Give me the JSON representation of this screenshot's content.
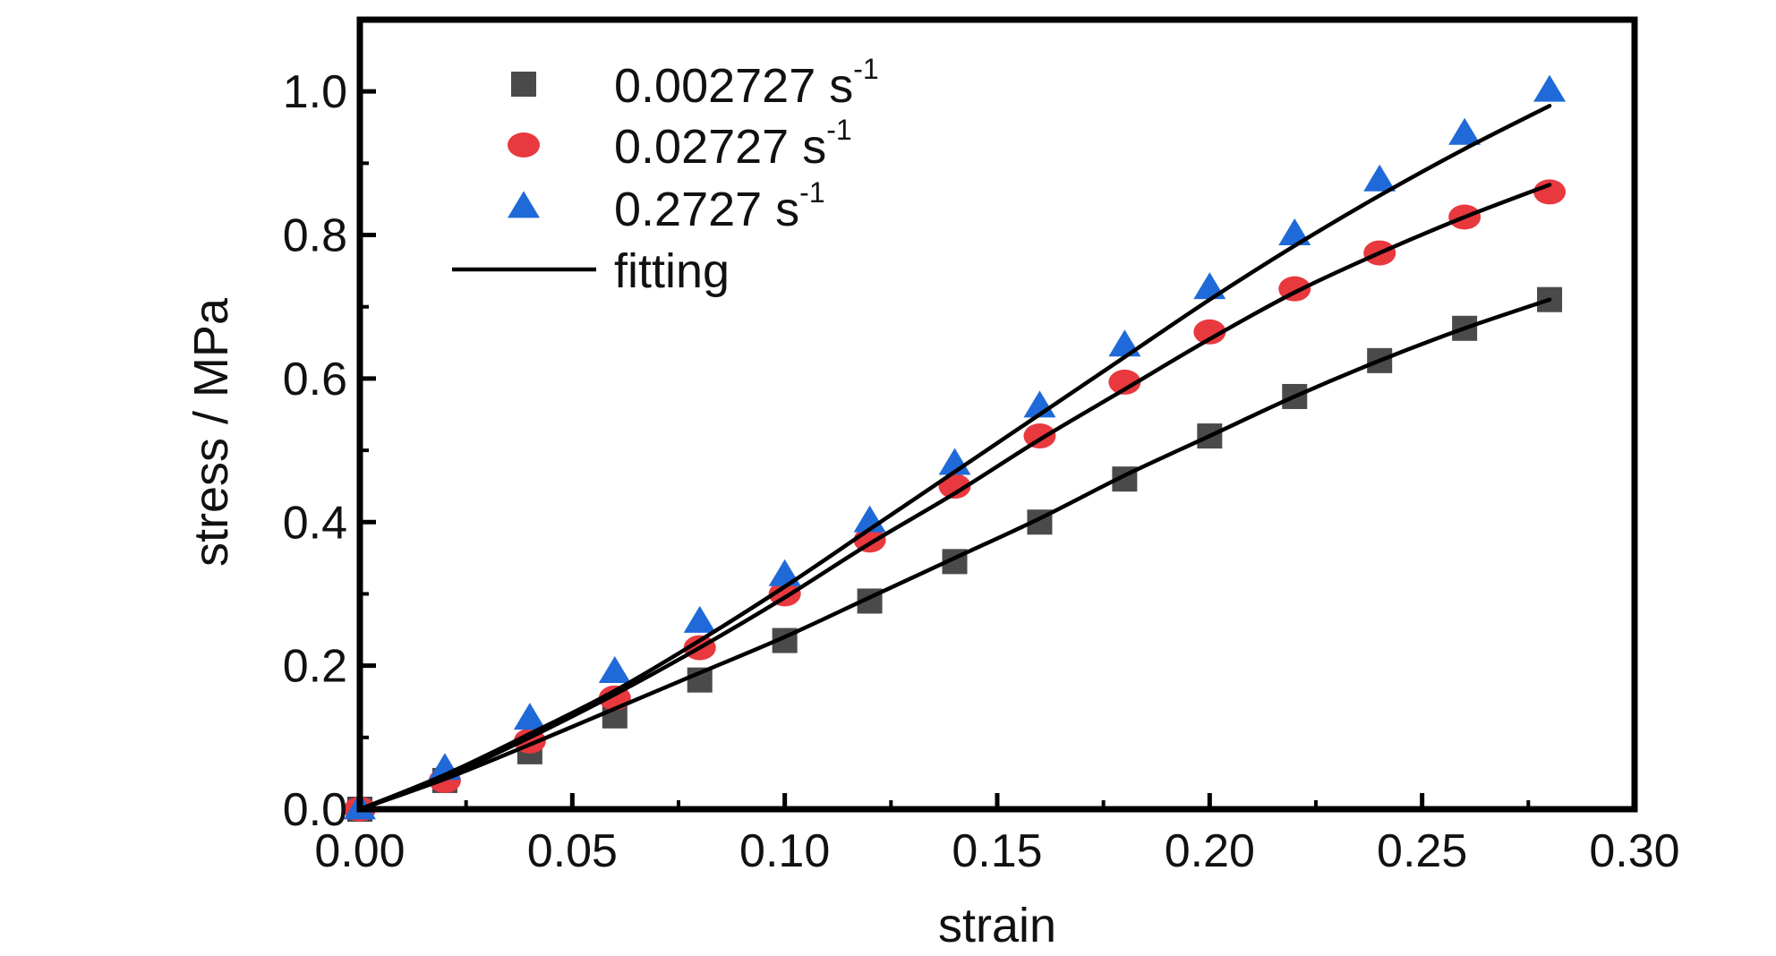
{
  "chart_data": {
    "type": "scatter",
    "xlabel": "strain",
    "ylabel": "stress / MPa",
    "xlim": [
      0.0,
      0.3
    ],
    "ylim": [
      0.0,
      1.1
    ],
    "x_ticks": [
      "0.00",
      "0.05",
      "0.10",
      "0.15",
      "0.20",
      "0.25",
      "0.30"
    ],
    "y_ticks": [
      "0.0",
      "0.2",
      "0.4",
      "0.6",
      "0.8",
      "1.0"
    ],
    "legend_position": "top-left",
    "grid": false,
    "x": [
      0.0,
      0.02,
      0.04,
      0.06,
      0.08,
      0.1,
      0.12,
      0.14,
      0.16,
      0.18,
      0.2,
      0.22,
      0.24,
      0.26,
      0.28
    ],
    "series": [
      {
        "name_main": "0.002727 s",
        "name_sup": "-1",
        "marker": "square",
        "color": "#4a4a4a",
        "values": [
          0.0,
          0.04,
          0.08,
          0.13,
          0.18,
          0.235,
          0.29,
          0.345,
          0.4,
          0.46,
          0.52,
          0.575,
          0.625,
          0.67,
          0.71
        ]
      },
      {
        "name_main": "0.02727 s",
        "name_sup": "-1",
        "marker": "circle",
        "color": "#e8393f",
        "values": [
          0.0,
          0.04,
          0.095,
          0.155,
          0.225,
          0.3,
          0.375,
          0.45,
          0.52,
          0.595,
          0.665,
          0.725,
          0.775,
          0.825,
          0.86
        ]
      },
      {
        "name_main": "0.2727 s",
        "name_sup": "-1",
        "marker": "triangle",
        "color": "#1f6ad8",
        "values": [
          0.0,
          0.055,
          0.125,
          0.19,
          0.26,
          0.325,
          0.4,
          0.48,
          0.56,
          0.645,
          0.725,
          0.8,
          0.875,
          0.94,
          1.0
        ]
      }
    ],
    "fits": [
      {
        "name": "fitting",
        "color": "#000000",
        "x": [
          0.0,
          0.02,
          0.04,
          0.06,
          0.08,
          0.1,
          0.12,
          0.14,
          0.16,
          0.18,
          0.2,
          0.22,
          0.24,
          0.26,
          0.28
        ],
        "y": [
          0.0,
          0.042,
          0.09,
          0.14,
          0.19,
          0.24,
          0.295,
          0.35,
          0.405,
          0.465,
          0.52,
          0.575,
          0.625,
          0.67,
          0.71
        ]
      },
      {
        "name": "fitting",
        "color": "#000000",
        "x": [
          0.0,
          0.02,
          0.04,
          0.06,
          0.08,
          0.1,
          0.12,
          0.14,
          0.16,
          0.18,
          0.2,
          0.22,
          0.24,
          0.26,
          0.28
        ],
        "y": [
          0.0,
          0.045,
          0.1,
          0.16,
          0.225,
          0.295,
          0.37,
          0.44,
          0.515,
          0.585,
          0.655,
          0.72,
          0.775,
          0.825,
          0.87
        ]
      },
      {
        "name": "fitting",
        "color": "#000000",
        "x": [
          0.0,
          0.02,
          0.04,
          0.06,
          0.08,
          0.1,
          0.12,
          0.14,
          0.16,
          0.18,
          0.2,
          0.22,
          0.24,
          0.26,
          0.28
        ],
        "y": [
          0.0,
          0.048,
          0.105,
          0.165,
          0.235,
          0.31,
          0.39,
          0.47,
          0.55,
          0.63,
          0.71,
          0.785,
          0.855,
          0.92,
          0.98
        ]
      }
    ],
    "legend": {
      "line_label": "fitting"
    }
  }
}
